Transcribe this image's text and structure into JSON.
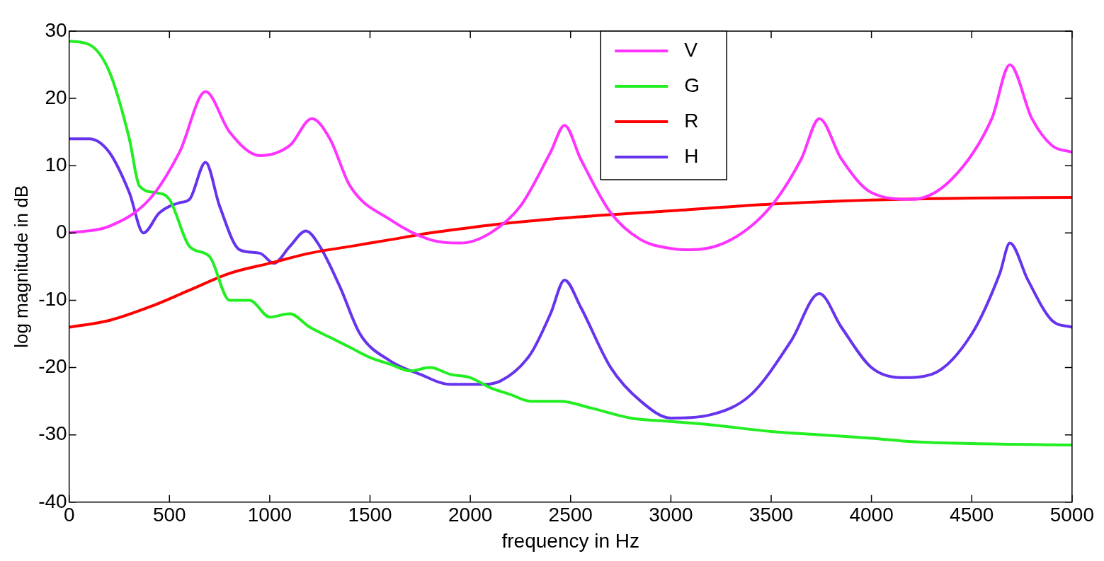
{
  "chart_data": {
    "type": "line",
    "xlabel": "frequency in Hz",
    "ylabel": "log magnitude in dB",
    "xlim": [
      0,
      5000
    ],
    "ylim": [
      -40,
      30
    ],
    "xticks": [
      0,
      500,
      1000,
      1500,
      2000,
      2500,
      3000,
      3500,
      4000,
      4500,
      5000
    ],
    "yticks": [
      -40,
      -30,
      -20,
      -10,
      0,
      10,
      20,
      30
    ],
    "grid": false,
    "legend": "top",
    "marker": "none",
    "line_style": "solid",
    "series": [
      {
        "name": "V",
        "color": "#ff33ff",
        "x": [
          0,
          200,
          400,
          550,
          680,
          800,
          950,
          1100,
          1210,
          1300,
          1400,
          1600,
          1800,
          1950,
          2100,
          2250,
          2400,
          2470,
          2550,
          2700,
          2850,
          3000,
          3100,
          3300,
          3500,
          3650,
          3740,
          3850,
          4000,
          4200,
          4400,
          4600,
          4690,
          4800,
          4900,
          5000
        ],
        "values": [
          0,
          1,
          5,
          12,
          21,
          15,
          11.5,
          13,
          17,
          14,
          7,
          2,
          -1,
          -1.5,
          0,
          4,
          12,
          16,
          11,
          3,
          -1,
          -2.3,
          -2.5,
          -1,
          4,
          11,
          17,
          11,
          6,
          5,
          8,
          17,
          25,
          17,
          13,
          12
        ]
      },
      {
        "name": "G",
        "color": "#22ee22",
        "x": [
          0,
          100,
          200,
          300,
          350,
          430,
          500,
          600,
          700,
          800,
          900,
          1000,
          1100,
          1200,
          1300,
          1400,
          1500,
          1600,
          1700,
          1800,
          1900,
          2000,
          2100,
          2200,
          2300,
          2450,
          2600,
          2800,
          3000,
          3200,
          3500,
          3750,
          4000,
          4200,
          4500,
          5000
        ],
        "values": [
          28.5,
          28,
          24,
          14,
          7,
          6,
          5,
          -2,
          -3.5,
          -10,
          -10,
          -12.5,
          -12,
          -14,
          -15.5,
          -17,
          -18.5,
          -19.5,
          -20.5,
          -20,
          -21,
          -21.5,
          -23,
          -24,
          -25,
          -25,
          -26,
          -27.5,
          -28,
          -28.5,
          -29.5,
          -30,
          -30.5,
          -31,
          -31.3,
          -31.5
        ]
      },
      {
        "name": "R",
        "color": "#ff0000",
        "x": [
          0,
          200,
          400,
          600,
          800,
          1000,
          1200,
          1400,
          1600,
          1800,
          2000,
          2200,
          2500,
          3000,
          3500,
          4000,
          4500,
          5000
        ],
        "values": [
          -14,
          -13,
          -11,
          -8.5,
          -6,
          -4.5,
          -3,
          -2,
          -1,
          0,
          0.8,
          1.5,
          2.3,
          3.3,
          4.3,
          4.9,
          5.2,
          5.3
        ]
      },
      {
        "name": "H",
        "color": "#6633ee",
        "x": [
          0,
          100,
          200,
          300,
          370,
          450,
          550,
          600,
          680,
          750,
          850,
          950,
          1020,
          1100,
          1180,
          1250,
          1350,
          1450,
          1600,
          1750,
          1900,
          2050,
          2150,
          2300,
          2400,
          2470,
          2550,
          2700,
          2850,
          3000,
          3200,
          3400,
          3600,
          3740,
          3850,
          4000,
          4150,
          4300,
          4500,
          4640,
          4690,
          4780,
          4900,
          5000
        ],
        "values": [
          14,
          14,
          12,
          6,
          0,
          3,
          4.5,
          5,
          10.5,
          4,
          -2.5,
          -3,
          -4.5,
          -2,
          0.3,
          -2,
          -8,
          -15,
          -19,
          -21,
          -22.5,
          -22.5,
          -22,
          -18,
          -12,
          -7,
          -11,
          -20,
          -25,
          -27.5,
          -27,
          -24,
          -16,
          -9,
          -14,
          -20,
          -21.5,
          -21,
          -15,
          -6,
          -1.5,
          -7,
          -13,
          -14
        ]
      }
    ]
  }
}
